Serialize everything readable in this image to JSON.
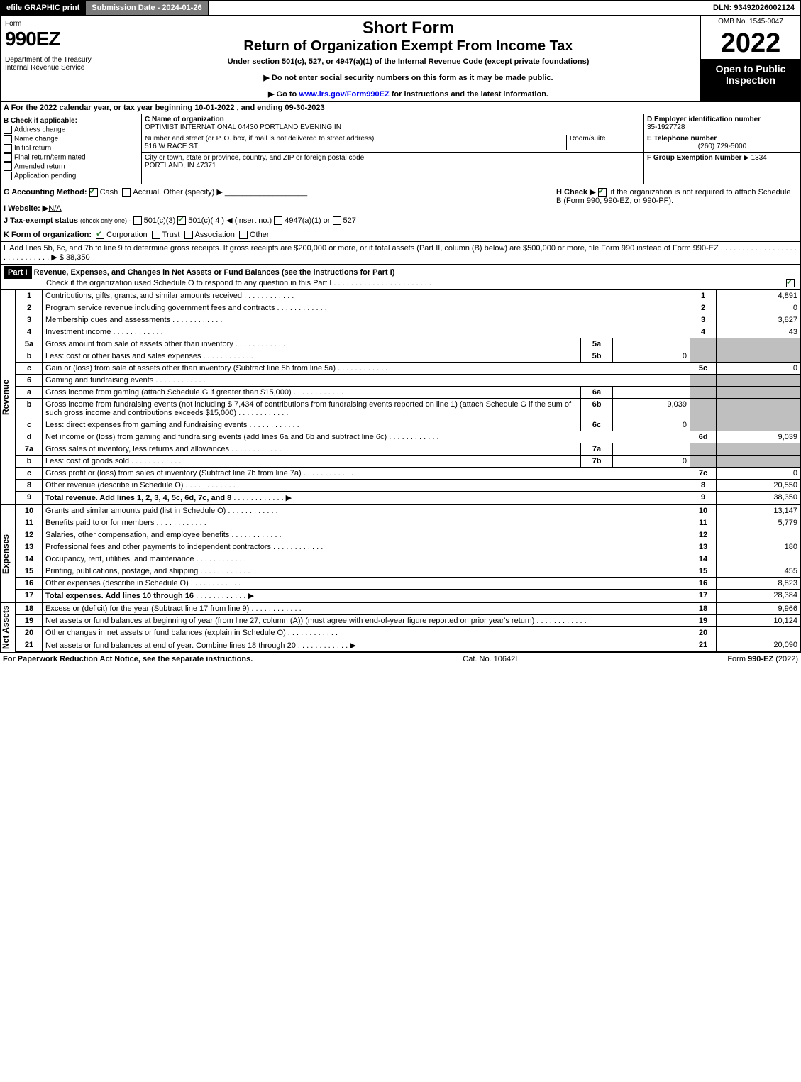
{
  "top": {
    "efile": "efile GRAPHIC print",
    "sub": "Submission Date - 2024-01-26",
    "dln": "DLN: 93492026002124"
  },
  "header": {
    "form": "Form",
    "formno": "990EZ",
    "dept": "Department of the Treasury\nInternal Revenue Service",
    "sf": "Short Form",
    "ret": "Return of Organization Exempt From Income Tax",
    "sub": "Under section 501(c), 527, or 4947(a)(1) of the Internal Revenue Code (except private foundations)",
    "note1": "▶ Do not enter social security numbers on this form as it may be made public.",
    "note2": "▶ Go to www.irs.gov/Form990EZ for instructions and the latest information.",
    "omb": "OMB No. 1545-0047",
    "year": "2022",
    "open": "Open to Public Inspection"
  },
  "A": "A  For the 2022 calendar year, or tax year beginning 10-01-2022 , and ending 09-30-2023",
  "B": {
    "label": "B  Check if applicable:",
    "opts": [
      "Address change",
      "Name change",
      "Initial return",
      "Final return/terminated",
      "Amended return",
      "Application pending"
    ]
  },
  "C": {
    "nameLabel": "C Name of organization",
    "name": "OPTIMIST INTERNATIONAL 04430 PORTLAND EVENING IN",
    "streetLabel": "Number and street (or P. O. box, if mail is not delivered to street address)",
    "room": "Room/suite",
    "street": "516 W RACE ST",
    "cityLabel": "City or town, state or province, country, and ZIP or foreign postal code",
    "city": "PORTLAND, IN  47371"
  },
  "D": {
    "einLabel": "D Employer identification number",
    "ein": "35-1927728",
    "telLabel": "E Telephone number",
    "tel": "(260) 729-5000",
    "grpLabel": "F Group Exemption Number",
    "grp": "▶ 1334"
  },
  "G": {
    "label": "G Accounting Method:",
    "cash": "Cash",
    "accrual": "Accrual",
    "other": "Other (specify) ▶"
  },
  "H": {
    "text": "H  Check ▶",
    "box": "if the organization is not required to attach Schedule B (Form 990, 990-EZ, or 990-PF)."
  },
  "I": {
    "label": "I Website: ▶",
    "val": "N/A"
  },
  "J": {
    "label": "J Tax-exempt status",
    "note": "(check only one) -",
    "o1": "501(c)(3)",
    "o2": "501(c)( 4 ) ◀ (insert no.)",
    "o3": "4947(a)(1) or",
    "o4": "527"
  },
  "K": {
    "label": "K Form of organization:",
    "o1": "Corporation",
    "o2": "Trust",
    "o3": "Association",
    "o4": "Other"
  },
  "L": {
    "text": "L Add lines 5b, 6c, and 7b to line 9 to determine gross receipts. If gross receipts are $200,000 or more, or if total assets (Part II, column (B) below) are $500,000 or more, file Form 990 instead of Form 990-EZ",
    "amt": "▶ $ 38,350"
  },
  "part1": {
    "hdr": "Part I",
    "title": "Revenue, Expenses, and Changes in Net Assets or Fund Balances (see the instructions for Part I)",
    "sub": "Check if the organization used Schedule O to respond to any question in this Part I"
  },
  "labels": {
    "rev": "Revenue",
    "exp": "Expenses",
    "na": "Net Assets"
  },
  "fundraising_incl": "7,434",
  "lines": [
    {
      "n": "1",
      "d": "Contributions, gifts, grants, and similar amounts received",
      "r": "1",
      "v": "4,891"
    },
    {
      "n": "2",
      "d": "Program service revenue including government fees and contracts",
      "r": "2",
      "v": "0"
    },
    {
      "n": "3",
      "d": "Membership dues and assessments",
      "r": "3",
      "v": "3,827"
    },
    {
      "n": "4",
      "d": "Investment income",
      "r": "4",
      "v": "43"
    },
    {
      "n": "5a",
      "d": "Gross amount from sale of assets other than inventory",
      "s": "5a",
      "sv": ""
    },
    {
      "n": "b",
      "d": "Less: cost or other basis and sales expenses",
      "s": "5b",
      "sv": "0"
    },
    {
      "n": "c",
      "d": "Gain or (loss) from sale of assets other than inventory (Subtract line 5b from line 5a)",
      "r": "5c",
      "v": "0"
    },
    {
      "n": "6",
      "d": "Gaming and fundraising events",
      "shade": true
    },
    {
      "n": "a",
      "d": "Gross income from gaming (attach Schedule G if greater than $15,000)",
      "s": "6a",
      "sv": ""
    },
    {
      "n": "b",
      "d": "Gross income from fundraising events (not including $  7,434         of contributions from fundraising events reported on line 1) (attach Schedule G if the sum of such gross income and contributions exceeds $15,000)",
      "s": "6b",
      "sv": "9,039"
    },
    {
      "n": "c",
      "d": "Less: direct expenses from gaming and fundraising events",
      "s": "6c",
      "sv": "0"
    },
    {
      "n": "d",
      "d": "Net income or (loss) from gaming and fundraising events (add lines 6a and 6b and subtract line 6c)",
      "r": "6d",
      "v": "9,039"
    },
    {
      "n": "7a",
      "d": "Gross sales of inventory, less returns and allowances",
      "s": "7a",
      "sv": ""
    },
    {
      "n": "b",
      "d": "Less: cost of goods sold",
      "s": "7b",
      "sv": "0"
    },
    {
      "n": "c",
      "d": "Gross profit or (loss) from sales of inventory (Subtract line 7b from line 7a)",
      "r": "7c",
      "v": "0"
    },
    {
      "n": "8",
      "d": "Other revenue (describe in Schedule O)",
      "r": "8",
      "v": "20,550"
    },
    {
      "n": "9",
      "d": "Total revenue. Add lines 1, 2, 3, 4, 5c, 6d, 7c, and 8",
      "r": "9",
      "v": "38,350",
      "bold": true,
      "arrow": true
    }
  ],
  "exp": [
    {
      "n": "10",
      "d": "Grants and similar amounts paid (list in Schedule O)",
      "r": "10",
      "v": "13,147"
    },
    {
      "n": "11",
      "d": "Benefits paid to or for members",
      "r": "11",
      "v": "5,779"
    },
    {
      "n": "12",
      "d": "Salaries, other compensation, and employee benefits",
      "r": "12",
      "v": ""
    },
    {
      "n": "13",
      "d": "Professional fees and other payments to independent contractors",
      "r": "13",
      "v": "180"
    },
    {
      "n": "14",
      "d": "Occupancy, rent, utilities, and maintenance",
      "r": "14",
      "v": ""
    },
    {
      "n": "15",
      "d": "Printing, publications, postage, and shipping",
      "r": "15",
      "v": "455"
    },
    {
      "n": "16",
      "d": "Other expenses (describe in Schedule O)",
      "r": "16",
      "v": "8,823"
    },
    {
      "n": "17",
      "d": "Total expenses. Add lines 10 through 16",
      "r": "17",
      "v": "28,384",
      "bold": true,
      "arrow": true
    }
  ],
  "na": [
    {
      "n": "18",
      "d": "Excess or (deficit) for the year (Subtract line 17 from line 9)",
      "r": "18",
      "v": "9,966"
    },
    {
      "n": "19",
      "d": "Net assets or fund balances at beginning of year (from line 27, column (A)) (must agree with end-of-year figure reported on prior year's return)",
      "r": "19",
      "v": "10,124"
    },
    {
      "n": "20",
      "d": "Other changes in net assets or fund balances (explain in Schedule O)",
      "r": "20",
      "v": ""
    },
    {
      "n": "21",
      "d": "Net assets or fund balances at end of year. Combine lines 18 through 20",
      "r": "21",
      "v": "20,090",
      "arrow": true
    }
  ],
  "footer": {
    "f1": "For Paperwork Reduction Act Notice, see the separate instructions.",
    "f2": "Cat. No. 10642I",
    "f3": "Form 990-EZ (2022)"
  }
}
